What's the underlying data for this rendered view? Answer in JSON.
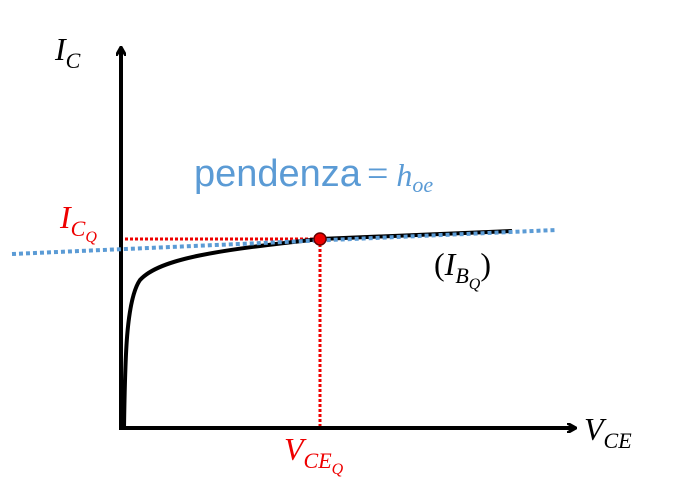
{
  "axes": {
    "y_label": {
      "base": "I",
      "sub": "C"
    },
    "x_label": {
      "base": "V",
      "sub": "CE"
    }
  },
  "slope_label": {
    "word": "pendenza",
    "equals": "=",
    "symbol": "h",
    "sub": "oe"
  },
  "quiescent": {
    "current": {
      "base": "I",
      "sub": "C",
      "subsub": "Q"
    },
    "voltage": {
      "base": "V",
      "sub": "CE",
      "subsub": "Q"
    }
  },
  "curve_label": {
    "open": "(",
    "base": "I",
    "sub": "B",
    "subsub": "Q",
    "close": ")"
  }
}
